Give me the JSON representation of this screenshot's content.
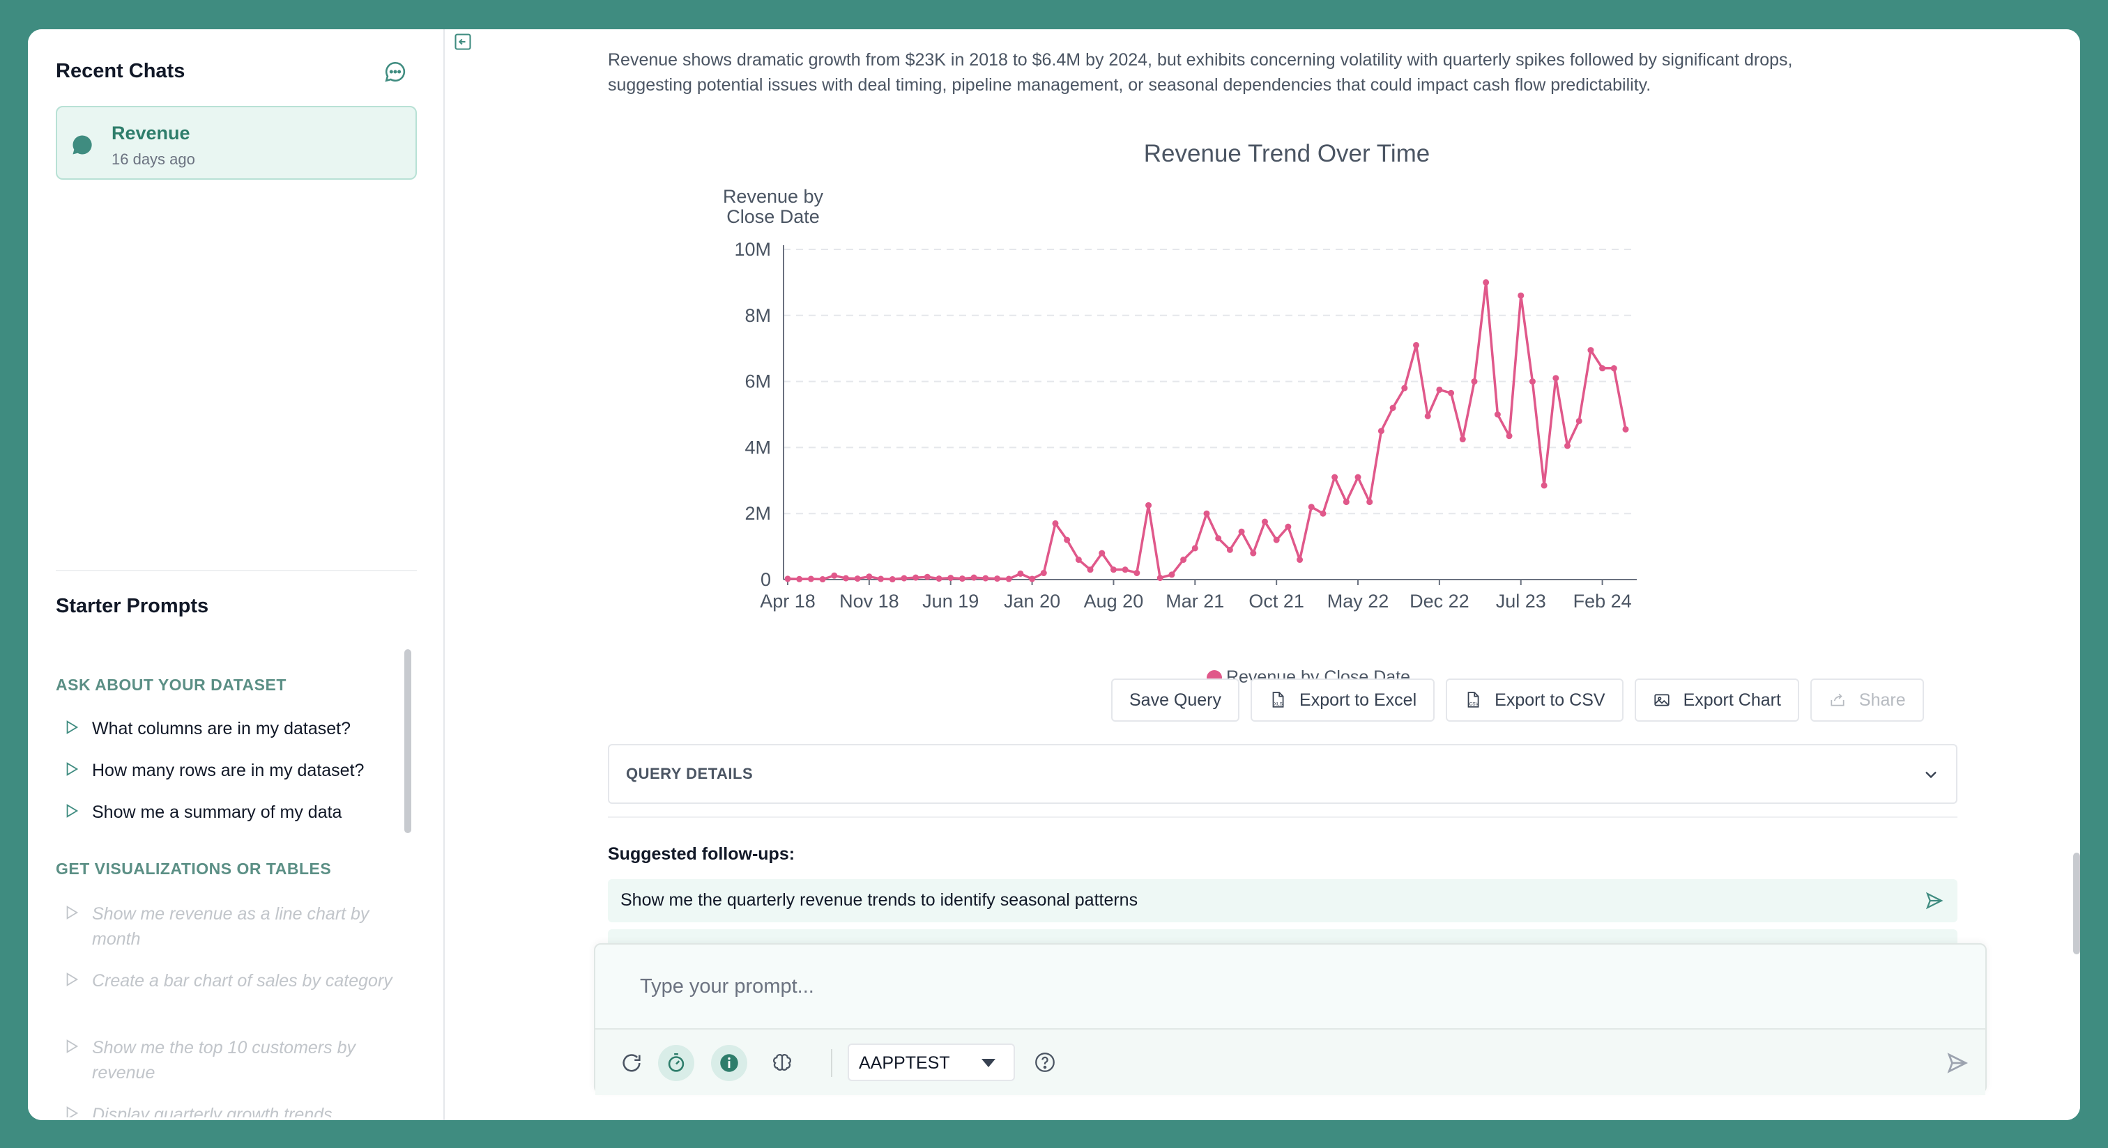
{
  "sidebar": {
    "recent_title": "Recent Chats",
    "chats": [
      {
        "title": "Revenue",
        "age": "16 days ago"
      }
    ],
    "starter_title": "Starter Prompts",
    "sections": [
      {
        "title": "ASK ABOUT YOUR DATASET",
        "items": [
          "What columns are in my dataset?",
          "How many rows are in my dataset?",
          "Show me a summary of my data"
        ]
      },
      {
        "title": "GET VISUALIZATIONS OR TABLES",
        "items": [
          "Show me revenue as a line chart by month",
          "Create a bar chart of sales by category",
          "Show me the top 10 customers by revenue",
          "Display quarterly growth trends"
        ]
      }
    ]
  },
  "main": {
    "summary": "Revenue shows dramatic growth from $23K in 2018 to $6.4M by 2024, but exhibits concerning volatility with quarterly spikes followed by significant drops, suggesting potential issues with deal timing, pipeline management, or seasonal dependencies that could impact cash flow predictability.",
    "buttons": {
      "save": "Save Query",
      "excel": "Export to Excel",
      "csv": "Export to CSV",
      "chart": "Export Chart",
      "share": "Share"
    },
    "query_details": "QUERY DETAILS",
    "followups_title": "Suggested follow-ups:",
    "followups": [
      "Show me the quarterly revenue trends to identify seasonal patterns"
    ],
    "prompt_placeholder": "Type your prompt...",
    "model": "AAPPTEST"
  },
  "colors": {
    "accent": "#3f8c80",
    "series": "#e0588a"
  },
  "chart_data": {
    "type": "line",
    "title": "Revenue Trend Over Time",
    "ylabel": "Revenue by Close Date",
    "legend": "Revenue by Close Date",
    "yticks": [
      "0",
      "2M",
      "4M",
      "6M",
      "8M",
      "10M"
    ],
    "ylim": [
      0,
      10000000
    ],
    "xticks": [
      {
        "label": "Apr 18",
        "index": 0
      },
      {
        "label": "Nov 18",
        "index": 7
      },
      {
        "label": "Jun 19",
        "index": 14
      },
      {
        "label": "Jan 20",
        "index": 21
      },
      {
        "label": "Aug 20",
        "index": 28
      },
      {
        "label": "Mar 21",
        "index": 35
      },
      {
        "label": "Oct 21",
        "index": 42
      },
      {
        "label": "May 22",
        "index": 49
      },
      {
        "label": "Dec 22",
        "index": 56
      },
      {
        "label": "Jul 23",
        "index": 63
      },
      {
        "label": "Feb 24",
        "index": 70
      }
    ],
    "grid": true,
    "series": [
      {
        "name": "Revenue by Close Date",
        "values": [
          23000,
          15000,
          20000,
          10000,
          120000,
          40000,
          30000,
          90000,
          20000,
          10000,
          40000,
          60000,
          80000,
          30000,
          50000,
          30000,
          60000,
          40000,
          30000,
          20000,
          180000,
          20000,
          200000,
          1700000,
          1200000,
          600000,
          300000,
          800000,
          300000,
          300000,
          200000,
          2250000,
          50000,
          150000,
          600000,
          950000,
          2000000,
          1250000,
          900000,
          1450000,
          800000,
          1750000,
          1200000,
          1600000,
          600000,
          2200000,
          2000000,
          3100000,
          2350000,
          3100000,
          2350000,
          4500000,
          5200000,
          5800000,
          7100000,
          4950000,
          5750000,
          5650000,
          4250000,
          6000000,
          9000000,
          5000000,
          4350000,
          8600000,
          6000000,
          2850000,
          6100000,
          4050000,
          4800000,
          6950000,
          6400000,
          6400000,
          4550000
        ]
      }
    ]
  }
}
